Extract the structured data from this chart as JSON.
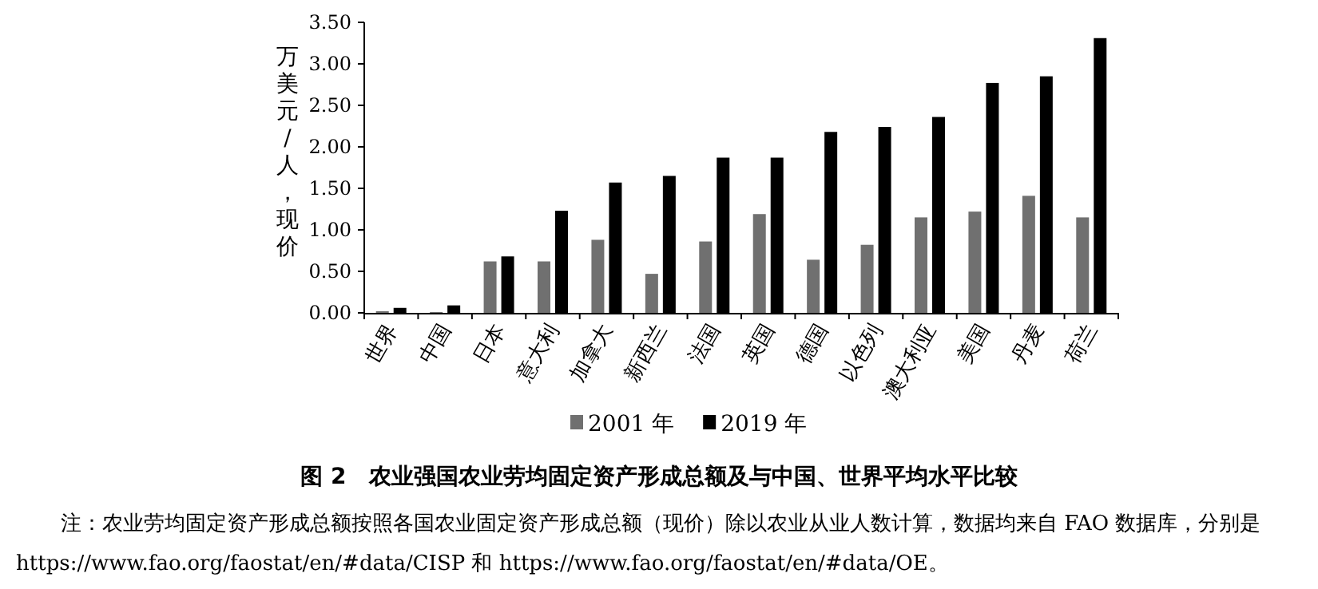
{
  "chart_data": {
    "type": "bar",
    "title": "图 2　农业强国农业劳均固定资产形成总额及与中国、世界平均水平比较",
    "ylabel": "万美元/人，现价",
    "categories": [
      "世界",
      "中国",
      "日本",
      "意大利",
      "加拿大",
      "新西兰",
      "法国",
      "英国",
      "德国",
      "以色列",
      "澳大利亚",
      "美国",
      "丹麦",
      "荷兰"
    ],
    "series": [
      {
        "name": "2001 年",
        "color": "#707070",
        "values": [
          0.02,
          0.01,
          0.62,
          0.62,
          0.88,
          0.47,
          0.86,
          1.19,
          0.64,
          0.82,
          1.15,
          1.22,
          1.41,
          1.15
        ]
      },
      {
        "name": "2019 年",
        "color": "#000000",
        "values": [
          0.06,
          0.09,
          0.68,
          1.23,
          1.57,
          1.65,
          1.87,
          1.87,
          2.18,
          2.24,
          2.36,
          2.77,
          2.85,
          3.31
        ]
      }
    ],
    "ylim": [
      0,
      3.5
    ],
    "yticks": [
      {
        "value": 0,
        "label": "0.00"
      },
      {
        "value": 0.5,
        "label": "0.50"
      },
      {
        "value": 1,
        "label": "1.00"
      },
      {
        "value": 1.5,
        "label": "1.50"
      },
      {
        "value": 2,
        "label": "2.00"
      },
      {
        "value": 2.5,
        "label": "2.50"
      },
      {
        "value": 3,
        "label": "3.00"
      },
      {
        "value": 3.5,
        "label": "3.50"
      }
    ],
    "legend": "bottom",
    "grid": false,
    "annotations": [
      "注：农业劳均固定资产形成总额按照各国农业固定资产形成总额（现价）除以农业从业人数计算，数据均来自 FAO 数据库，分别是 https://www.fao.org/faostat/en/#data/CISP 和 https://www.fao.org/faostat/en/#data/OE。"
    ]
  }
}
